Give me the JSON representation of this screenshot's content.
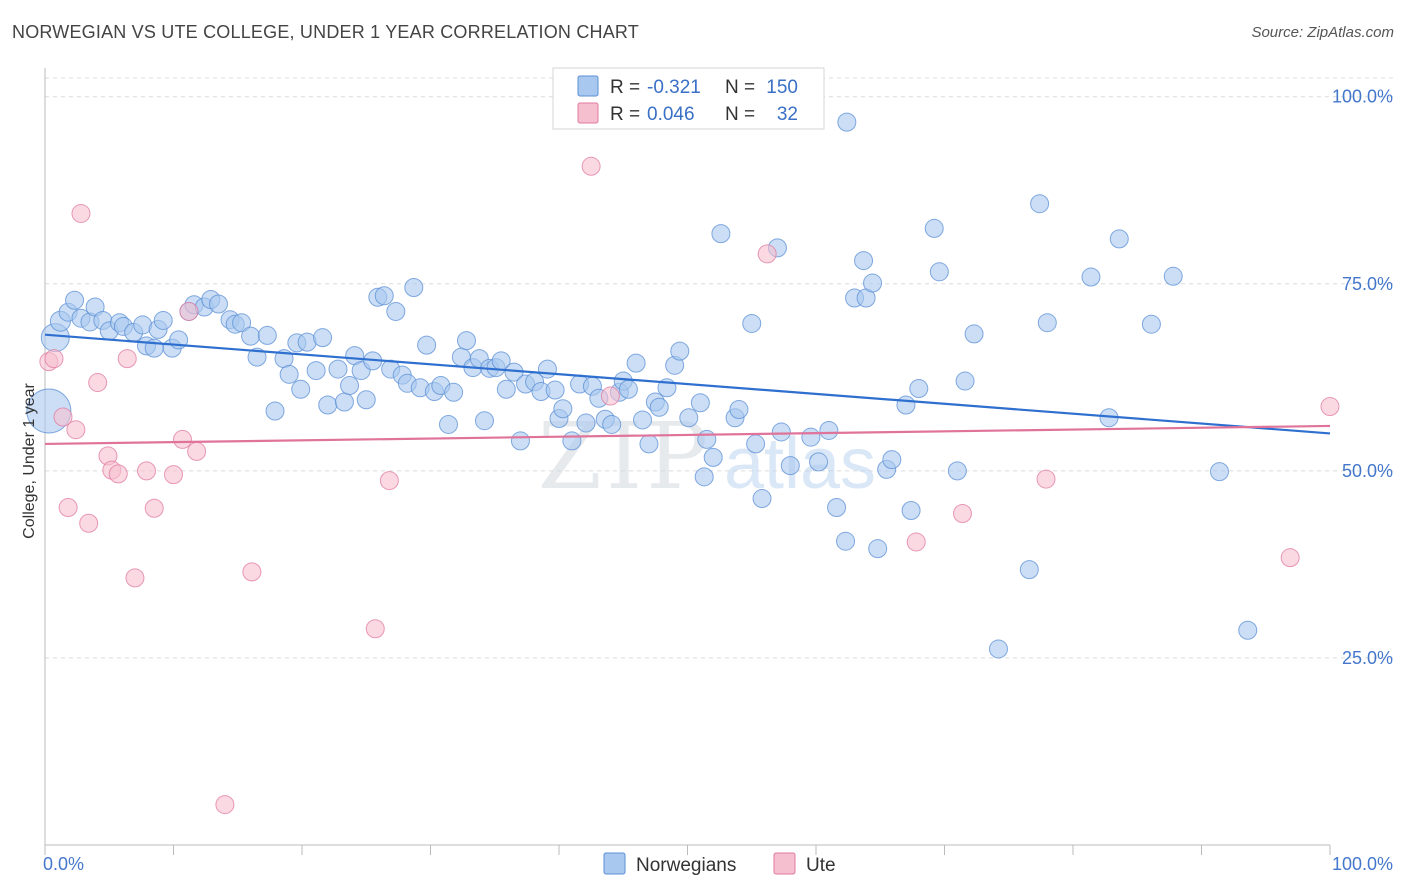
{
  "title": "NORWEGIAN VS UTE COLLEGE, UNDER 1 YEAR CORRELATION CHART",
  "source": "Source: ZipAtlas.com",
  "watermark": {
    "zip": "ZIP",
    "atlas": "atlas"
  },
  "legend_top": [
    {
      "r_label": "R =",
      "r_value": "-0.321",
      "n_label": "N =",
      "n_value": "150",
      "color": "#a9c8ef",
      "stroke": "#5b8fd6"
    },
    {
      "r_label": "R =",
      "r_value": "0.046",
      "n_label": "N =",
      "n_value": "32",
      "color": "#f6bfd0",
      "stroke": "#e07aa0"
    }
  ],
  "legend_bottom": [
    {
      "label": "Norwegians",
      "color": "#a9c8ef",
      "stroke": "#5b8fd6"
    },
    {
      "label": "Ute",
      "color": "#f6bfd0",
      "stroke": "#e07aa0"
    }
  ],
  "chart_data": {
    "type": "scatter",
    "xlabel": "",
    "ylabel": "College, Under 1 year",
    "xlim": [
      0,
      100
    ],
    "ylim": [
      0,
      102.5
    ],
    "x_tick_labels": [
      "0.0%",
      "100.0%"
    ],
    "y_ticks": [
      25,
      50,
      75,
      100
    ],
    "y_tick_labels": [
      "25.0%",
      "50.0%",
      "75.0%",
      "100.0%"
    ],
    "grid": true,
    "legend": "top-center",
    "series": [
      {
        "name": "Norwegians",
        "color": "#5b8fd6",
        "fill": "#a9c8ef",
        "trend": [
          [
            0,
            68.2
          ],
          [
            100,
            55.0
          ]
        ],
        "points": [
          [
            0.3,
            58.0,
            22
          ],
          [
            0.8,
            67.8,
            14
          ],
          [
            1.2,
            70.0,
            10
          ],
          [
            1.8,
            71.2,
            9
          ],
          [
            2.3,
            72.8,
            9
          ],
          [
            2.8,
            70.4,
            9
          ],
          [
            3.5,
            69.9,
            9
          ],
          [
            3.9,
            71.9,
            9
          ],
          [
            4.5,
            70.1,
            9
          ],
          [
            5.0,
            68.7,
            9
          ],
          [
            5.8,
            69.8,
            9
          ],
          [
            6.1,
            69.3,
            9
          ],
          [
            6.9,
            68.5,
            9
          ],
          [
            7.6,
            69.5,
            9
          ],
          [
            7.9,
            66.7,
            9
          ],
          [
            8.5,
            66.4,
            9
          ],
          [
            8.8,
            68.9,
            9
          ],
          [
            9.2,
            70.1,
            9
          ],
          [
            9.9,
            66.4,
            9
          ],
          [
            10.4,
            67.5,
            9
          ],
          [
            11.2,
            71.3,
            9
          ],
          [
            11.6,
            72.2,
            9
          ],
          [
            12.4,
            71.9,
            9
          ],
          [
            12.9,
            72.9,
            9
          ],
          [
            13.5,
            72.3,
            9
          ],
          [
            14.4,
            70.2,
            9
          ],
          [
            14.8,
            69.6,
            9
          ],
          [
            15.3,
            69.8,
            9
          ],
          [
            16.0,
            68.0,
            9
          ],
          [
            16.5,
            65.2,
            9
          ],
          [
            17.3,
            68.1,
            9
          ],
          [
            17.9,
            58.0,
            9
          ],
          [
            18.6,
            65.0,
            9
          ],
          [
            19.0,
            62.9,
            9
          ],
          [
            19.6,
            67.1,
            9
          ],
          [
            19.9,
            60.9,
            9
          ],
          [
            20.4,
            67.2,
            9
          ],
          [
            21.1,
            63.4,
            9
          ],
          [
            21.6,
            67.8,
            9
          ],
          [
            22.0,
            58.8,
            9
          ],
          [
            22.8,
            63.6,
            9
          ],
          [
            23.3,
            59.2,
            9
          ],
          [
            23.7,
            61.4,
            9
          ],
          [
            24.1,
            65.4,
            9
          ],
          [
            24.6,
            63.4,
            9
          ],
          [
            25.0,
            59.5,
            9
          ],
          [
            25.5,
            64.7,
            9
          ],
          [
            25.9,
            73.2,
            9
          ],
          [
            26.4,
            73.4,
            9
          ],
          [
            26.9,
            63.6,
            9
          ],
          [
            27.3,
            71.3,
            9
          ],
          [
            27.8,
            62.8,
            9
          ],
          [
            28.2,
            61.7,
            9
          ],
          [
            28.7,
            74.5,
            9
          ],
          [
            29.2,
            61.1,
            9
          ],
          [
            29.7,
            66.8,
            9
          ],
          [
            30.3,
            60.6,
            9
          ],
          [
            30.8,
            61.4,
            9
          ],
          [
            31.4,
            56.2,
            9
          ],
          [
            31.8,
            60.5,
            9
          ],
          [
            32.4,
            65.2,
            9
          ],
          [
            32.8,
            67.4,
            9
          ],
          [
            33.3,
            63.8,
            9
          ],
          [
            33.8,
            65.0,
            9
          ],
          [
            34.2,
            56.7,
            9
          ],
          [
            34.6,
            63.7,
            9
          ],
          [
            35.1,
            63.8,
            9
          ],
          [
            35.5,
            64.7,
            9
          ],
          [
            35.9,
            60.9,
            9
          ],
          [
            36.5,
            63.2,
            9
          ],
          [
            37.0,
            54.0,
            9
          ],
          [
            37.4,
            61.6,
            9
          ],
          [
            38.1,
            61.9,
            9
          ],
          [
            38.6,
            60.6,
            9
          ],
          [
            39.1,
            63.6,
            9
          ],
          [
            39.7,
            60.8,
            9
          ],
          [
            40.0,
            57.0,
            9
          ],
          [
            40.3,
            58.3,
            9
          ],
          [
            41.0,
            54.0,
            9
          ],
          [
            41.6,
            61.6,
            9
          ],
          [
            42.1,
            56.4,
            9
          ],
          [
            42.6,
            61.3,
            9
          ],
          [
            43.1,
            59.7,
            9
          ],
          [
            43.6,
            56.9,
            9
          ],
          [
            44.1,
            56.2,
            9
          ],
          [
            44.7,
            60.5,
            9
          ],
          [
            45.0,
            62.0,
            9
          ],
          [
            45.4,
            60.9,
            9
          ],
          [
            46.0,
            64.4,
            9
          ],
          [
            46.5,
            56.8,
            9
          ],
          [
            47.0,
            53.6,
            9
          ],
          [
            47.5,
            59.2,
            9
          ],
          [
            47.8,
            58.5,
            9
          ],
          [
            48.4,
            61.1,
            9
          ],
          [
            49.0,
            64.1,
            9
          ],
          [
            49.4,
            66.0,
            9
          ],
          [
            50.1,
            57.1,
            9
          ],
          [
            51.0,
            59.1,
            9
          ],
          [
            51.5,
            54.2,
            9
          ],
          [
            52.0,
            51.8,
            9
          ],
          [
            51.3,
            49.2,
            9
          ],
          [
            52.6,
            81.7,
            9
          ],
          [
            53.7,
            57.1,
            9
          ],
          [
            54.0,
            58.2,
            9
          ],
          [
            55.0,
            69.7,
            9
          ],
          [
            55.3,
            53.6,
            9
          ],
          [
            55.8,
            46.3,
            9
          ],
          [
            57.0,
            79.8,
            9
          ],
          [
            57.3,
            55.2,
            9
          ],
          [
            58.0,
            50.7,
            9
          ],
          [
            59.6,
            54.5,
            9
          ],
          [
            60.2,
            51.2,
            9
          ],
          [
            61.0,
            55.4,
            9
          ],
          [
            61.6,
            45.1,
            9
          ],
          [
            62.3,
            40.6,
            9
          ],
          [
            63.0,
            73.1,
            9
          ],
          [
            63.7,
            78.1,
            9
          ],
          [
            63.9,
            73.1,
            9
          ],
          [
            64.4,
            75.1,
            9
          ],
          [
            64.8,
            39.6,
            9
          ],
          [
            65.5,
            50.2,
            9
          ],
          [
            65.9,
            51.5,
            9
          ],
          [
            67.0,
            58.8,
            9
          ],
          [
            67.4,
            44.7,
            9
          ],
          [
            68.0,
            61.0,
            9
          ],
          [
            69.2,
            82.4,
            9
          ],
          [
            69.6,
            76.6,
            9
          ],
          [
            71.0,
            50.0,
            9
          ],
          [
            71.6,
            62.0,
            9
          ],
          [
            72.3,
            68.3,
            9
          ],
          [
            74.2,
            26.2,
            9
          ],
          [
            76.6,
            36.8,
            9
          ],
          [
            77.4,
            85.7,
            9
          ],
          [
            78.0,
            69.8,
            9
          ],
          [
            81.4,
            75.9,
            9
          ],
          [
            82.8,
            57.1,
            9
          ],
          [
            83.6,
            81.0,
            9
          ],
          [
            86.1,
            69.6,
            9
          ],
          [
            87.8,
            76.0,
            9
          ],
          [
            91.4,
            49.9,
            9
          ],
          [
            93.6,
            28.7,
            9
          ],
          [
            62.4,
            96.6,
            9
          ]
        ]
      },
      {
        "name": "Ute",
        "color": "#e07aa0",
        "fill": "#f6bfd0",
        "trend": [
          [
            0,
            53.6
          ],
          [
            100,
            56.0
          ]
        ],
        "points": [
          [
            0.3,
            64.6,
            9
          ],
          [
            0.7,
            65.0,
            9
          ],
          [
            1.4,
            57.2,
            9
          ],
          [
            1.8,
            45.1,
            9
          ],
          [
            2.4,
            55.5,
            9
          ],
          [
            2.8,
            84.4,
            9
          ],
          [
            3.4,
            43.0,
            9
          ],
          [
            4.1,
            61.8,
            9
          ],
          [
            4.9,
            52.0,
            9
          ],
          [
            5.2,
            50.1,
            9
          ],
          [
            5.7,
            49.6,
            9
          ],
          [
            6.4,
            65.0,
            9
          ],
          [
            7.0,
            35.7,
            9
          ],
          [
            7.9,
            50.0,
            9
          ],
          [
            8.5,
            45.0,
            9
          ],
          [
            10.0,
            49.5,
            9
          ],
          [
            10.7,
            54.2,
            9
          ],
          [
            11.2,
            71.3,
            9
          ],
          [
            11.8,
            52.6,
            9
          ],
          [
            14.0,
            5.4,
            9
          ],
          [
            16.1,
            36.5,
            9
          ],
          [
            25.7,
            28.9,
            9
          ],
          [
            26.8,
            48.7,
            9
          ],
          [
            42.5,
            90.7,
            9
          ],
          [
            44.0,
            60.0,
            9
          ],
          [
            52.1,
            100.0,
            9
          ],
          [
            56.2,
            79.0,
            9
          ],
          [
            67.8,
            40.5,
            9
          ],
          [
            71.4,
            44.3,
            9
          ],
          [
            77.9,
            48.9,
            9
          ],
          [
            96.9,
            38.4,
            9
          ],
          [
            100.0,
            58.6,
            9
          ]
        ]
      }
    ]
  }
}
